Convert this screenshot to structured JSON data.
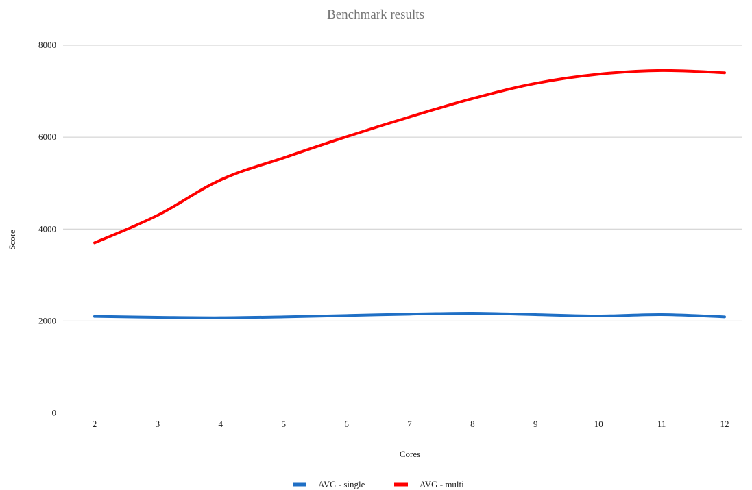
{
  "chart_data": {
    "type": "line",
    "title": "Benchmark results",
    "xlabel": "Cores",
    "ylabel": "Score",
    "categories": [
      "2",
      "3",
      "4",
      "5",
      "6",
      "7",
      "8",
      "9",
      "10",
      "11",
      "12"
    ],
    "ylim": [
      0,
      8000
    ],
    "yticks": [
      "0",
      "2000",
      "4000",
      "6000",
      "8000"
    ],
    "grid": true,
    "legend_position": "bottom",
    "series": [
      {
        "name": "AVG - single",
        "color": "#1f6fc5",
        "values": [
          2100,
          2080,
          2070,
          2090,
          2120,
          2150,
          2170,
          2140,
          2110,
          2140,
          2090
        ]
      },
      {
        "name": "AVG - multi",
        "color": "#ff0000",
        "values": [
          3700,
          4300,
          5070,
          5550,
          6010,
          6440,
          6840,
          7170,
          7370,
          7450,
          7400
        ]
      }
    ]
  }
}
